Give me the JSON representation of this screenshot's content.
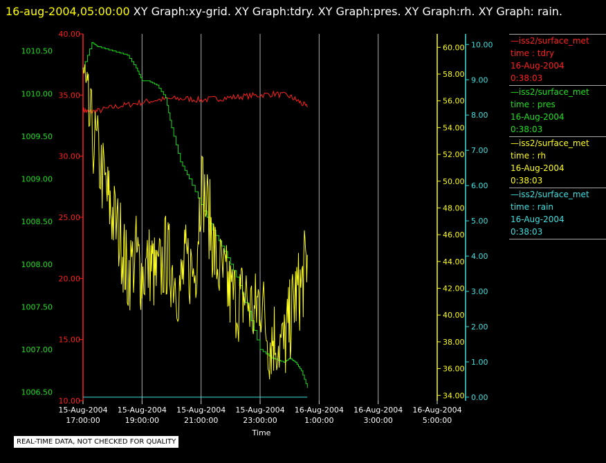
{
  "title": {
    "timestamp": "16-aug-2004,05:00:00",
    "text": " XY Graph:xy-grid.  XY Graph:tdry.  XY Graph:pres.  XY Graph:rh.  XY Graph: rain."
  },
  "legend": [
    {
      "name": "—iss2/surface_met",
      "var": "time : tdry",
      "date": "16-Aug-2004",
      "time": "0:38:03",
      "color": "#ff2020"
    },
    {
      "name": "—iss2/surface_met",
      "var": "time : pres",
      "date": "16-Aug-2004",
      "time": "0:38:03",
      "color": "#20e020"
    },
    {
      "name": "—iss2/surface_met",
      "var": "time : rh",
      "date": "16-Aug-2004",
      "time": "0:38:03",
      "color": "#ffff20"
    },
    {
      "name": "—iss2/surface_met",
      "var": "time : rain",
      "date": "16-Aug-2004",
      "time": "0:38:03",
      "color": "#40e0e0"
    }
  ],
  "footer": "REAL-TIME DATA, NOT CHECKED FOR QUALITY",
  "chart_data": {
    "type": "line",
    "xlabel": "Time",
    "x_ticks": [
      {
        "date": "15-Aug-2004",
        "time": "17:00:00",
        "h": 17
      },
      {
        "date": "15-Aug-2004",
        "time": "19:00:00",
        "h": 19
      },
      {
        "date": "15-Aug-2004",
        "time": "21:00:00",
        "h": 21
      },
      {
        "date": "15-Aug-2004",
        "time": "23:00:00",
        "h": 23
      },
      {
        "date": "16-Aug-2004",
        "time": "1:00:00",
        "h": 25
      },
      {
        "date": "16-Aug-2004",
        "time": "3:00:00",
        "h": 27
      },
      {
        "date": "16-Aug-2004",
        "time": "5:00:00",
        "h": 29
      }
    ],
    "xlim_hours": [
      17,
      29
    ],
    "grid": true,
    "legend_position": "right",
    "axes": [
      {
        "id": "pres",
        "color": "#20e020",
        "range": [
          1006.4,
          1010.7
        ],
        "ticks": [
          "1006.50",
          "1007.00",
          "1007.50",
          "1008.00",
          "1008.50",
          "1009.00",
          "1009.50",
          "1010.00",
          "1010.50"
        ]
      },
      {
        "id": "tdry",
        "color": "#ff2020",
        "range": [
          10,
          40
        ],
        "ticks": [
          "10.00",
          "15.00",
          "20.00",
          "25.00",
          "30.00",
          "35.00",
          "40.00"
        ]
      },
      {
        "id": "rh",
        "color": "#ffff20",
        "range": [
          33.6,
          61
        ],
        "ticks": [
          "34.00",
          "36.00",
          "38.00",
          "40.00",
          "42.00",
          "44.00",
          "46.00",
          "48.00",
          "50.00",
          "52.00",
          "54.00",
          "56.00",
          "58.00",
          "60.00"
        ]
      },
      {
        "id": "rain",
        "color": "#40e0e0",
        "range": [
          -0.1,
          10.3
        ],
        "ticks": [
          "0.00",
          "1.00",
          "2.00",
          "3.00",
          "4.00",
          "5.00",
          "6.00",
          "7.00",
          "8.00",
          "9.00",
          "10.00"
        ]
      }
    ],
    "series": [
      {
        "name": "tdry",
        "axis": "tdry",
        "color": "#ff2020",
        "x": [
          17.0,
          17.2,
          17.5,
          18.0,
          18.5,
          19.0,
          19.5,
          20.0,
          20.5,
          21.0,
          21.5,
          22.0,
          22.5,
          23.0,
          23.5,
          24.0,
          24.3,
          24.6
        ],
        "y": [
          33.8,
          33.6,
          33.7,
          34.0,
          34.2,
          34.4,
          34.6,
          34.7,
          34.7,
          34.6,
          34.7,
          34.8,
          34.9,
          35.0,
          35.1,
          34.9,
          34.5,
          34.0
        ]
      },
      {
        "name": "pres",
        "axis": "pres",
        "color": "#20e020",
        "x": [
          17.0,
          17.3,
          17.5,
          18.0,
          18.5,
          18.8,
          19.0,
          19.2,
          19.5,
          19.8,
          20.0,
          20.3,
          20.6,
          21.0,
          21.4,
          21.8,
          22.2,
          22.6,
          23.0,
          23.4,
          23.8,
          24.0,
          24.2,
          24.4,
          24.6
        ],
        "y": [
          1010.3,
          1010.6,
          1010.55,
          1010.5,
          1010.45,
          1010.3,
          1010.15,
          1010.15,
          1010.1,
          1009.95,
          1009.6,
          1009.2,
          1009.0,
          1008.7,
          1008.4,
          1008.15,
          1007.85,
          1007.45,
          1007.0,
          1006.9,
          1006.85,
          1006.9,
          1006.85,
          1006.75,
          1006.55
        ]
      },
      {
        "name": "rh",
        "axis": "rh",
        "color": "#ffff20",
        "x": [
          17.0,
          17.2,
          17.5,
          17.8,
          18.0,
          18.3,
          18.5,
          18.8,
          19.0,
          19.3,
          19.5,
          19.8,
          20.0,
          20.3,
          20.5,
          20.8,
          21.0,
          21.3,
          21.5,
          21.8,
          22.0,
          22.3,
          22.5,
          22.8,
          23.0,
          23.3,
          23.5,
          23.8,
          24.0,
          24.2,
          24.4,
          24.6
        ],
        "y": [
          58.5,
          54.5,
          52.0,
          49.0,
          47.5,
          45.5,
          43.0,
          44.5,
          43.0,
          44.0,
          42.5,
          44.5,
          43.5,
          42.0,
          44.0,
          43.0,
          50.0,
          47.0,
          44.0,
          42.5,
          41.5,
          41.0,
          41.5,
          40.0,
          41.5,
          38.0,
          38.5,
          37.5,
          39.5,
          41.5,
          42.0,
          44.5
        ]
      },
      {
        "name": "rain",
        "axis": "rain",
        "color": "#40e0e0",
        "x": [
          17.0,
          24.6
        ],
        "y": [
          0.0,
          0.0
        ]
      }
    ]
  }
}
